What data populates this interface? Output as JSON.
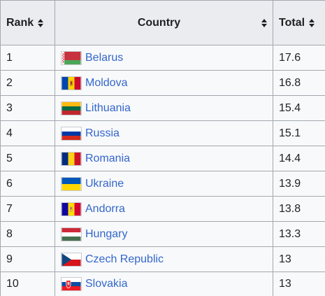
{
  "table": {
    "headers": {
      "rank": "Rank",
      "country": "Country",
      "total": "Total"
    },
    "rows": [
      {
        "rank": "1",
        "country": "Belarus",
        "total": "17.6",
        "flag_icon": "belarus-flag-icon"
      },
      {
        "rank": "2",
        "country": "Moldova",
        "total": "16.8",
        "flag_icon": "moldova-flag-icon"
      },
      {
        "rank": "3",
        "country": "Lithuania",
        "total": "15.4",
        "flag_icon": "lithuania-flag-icon"
      },
      {
        "rank": "4",
        "country": "Russia",
        "total": "15.1",
        "flag_icon": "russia-flag-icon"
      },
      {
        "rank": "5",
        "country": "Romania",
        "total": "14.4",
        "flag_icon": "romania-flag-icon"
      },
      {
        "rank": "6",
        "country": "Ukraine",
        "total": "13.9",
        "flag_icon": "ukraine-flag-icon"
      },
      {
        "rank": "7",
        "country": "Andorra",
        "total": "13.8",
        "flag_icon": "andorra-flag-icon"
      },
      {
        "rank": "8",
        "country": "Hungary",
        "total": "13.3",
        "flag_icon": "hungary-flag-icon"
      },
      {
        "rank": "9",
        "country": "Czech Republic",
        "total": "13",
        "flag_icon": "czech-republic-flag-icon"
      },
      {
        "rank": "10",
        "country": "Slovakia",
        "total": "13",
        "flag_icon": "slovakia-flag-icon"
      }
    ]
  },
  "colors": {
    "link": "#3366cc",
    "header_bg": "#eaecf0",
    "cell_bg": "#f8f9fa",
    "border": "#a2a9b1"
  }
}
